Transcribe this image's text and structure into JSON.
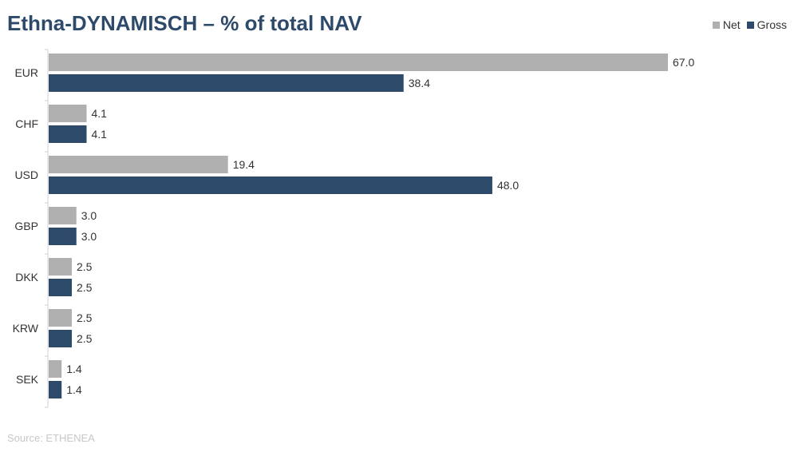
{
  "title": "Ethna-DYNAMISCH – % of total NAV",
  "source": "Source: ETHENEA",
  "legend": {
    "net_label": "Net",
    "gross_label": "Gross"
  },
  "colors": {
    "net": "#b0b0b0",
    "gross": "#2e4a6b",
    "title": "#2e4a6b",
    "axis": "#d0d0d0"
  },
  "chart_data": {
    "type": "bar",
    "orientation": "horizontal",
    "title": "Ethna-DYNAMISCH – % of total NAV",
    "categories": [
      "EUR",
      "CHF",
      "USD",
      "GBP",
      "DKK",
      "KRW",
      "SEK"
    ],
    "series": [
      {
        "name": "Net",
        "values": [
          67.0,
          4.1,
          19.4,
          3.0,
          2.5,
          2.5,
          1.4
        ]
      },
      {
        "name": "Gross",
        "values": [
          38.4,
          4.1,
          48.0,
          3.0,
          2.5,
          2.5,
          1.4
        ]
      }
    ],
    "xlim": [
      0,
      70
    ],
    "grid": false,
    "legend_position": "top-right",
    "data_labels": true
  }
}
